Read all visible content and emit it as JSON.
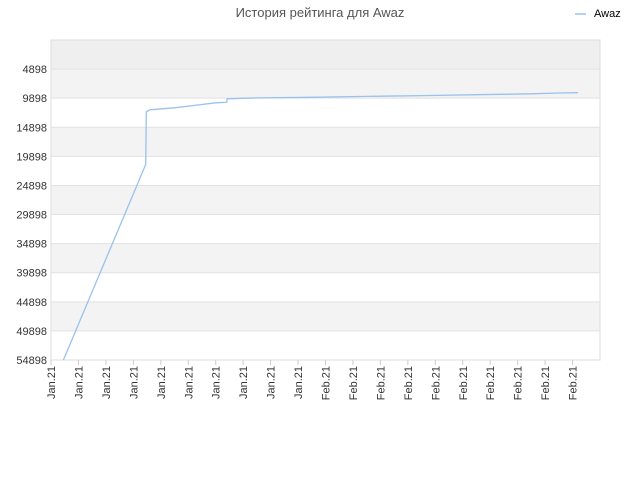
{
  "chart_data": {
    "type": "line",
    "title": "История рейтинга для Awaz",
    "xlabel": "",
    "ylabel": "",
    "y_inverted": true,
    "ylim": [
      54898,
      -102
    ],
    "yticks": [
      4898,
      9898,
      14898,
      19898,
      24898,
      29898,
      34898,
      39898,
      44898,
      49898,
      54898
    ],
    "x_tick_labels": [
      "Jan.21",
      "Jan.21",
      "Jan.21",
      "Jan.21",
      "Jan.21",
      "Jan.21",
      "Jan.21",
      "Jan.21",
      "Jan.21",
      "Jan.21",
      "Feb.21",
      "Feb.21",
      "Feb.21",
      "Feb.21",
      "Feb.21",
      "Feb.21",
      "Feb.21",
      "Feb.21",
      "Feb.21",
      "Feb.21"
    ],
    "grid": true,
    "legend": "top-right",
    "series_color": "#99c2ec",
    "series": [
      {
        "name": "Awaz",
        "points": [
          {
            "x": 0.45,
            "y": 54898
          },
          {
            "x": 3.45,
            "y": 21300
          },
          {
            "x": 3.47,
            "y": 12250
          },
          {
            "x": 3.6,
            "y": 11900
          },
          {
            "x": 4.5,
            "y": 11550
          },
          {
            "x": 5.2,
            "y": 11150
          },
          {
            "x": 6.0,
            "y": 10700
          },
          {
            "x": 6.4,
            "y": 10600
          },
          {
            "x": 6.42,
            "y": 10000
          },
          {
            "x": 7.5,
            "y": 9850
          },
          {
            "x": 9.5,
            "y": 9750
          },
          {
            "x": 11.5,
            "y": 9600
          },
          {
            "x": 13.5,
            "y": 9450
          },
          {
            "x": 15.5,
            "y": 9300
          },
          {
            "x": 17.5,
            "y": 9150
          },
          {
            "x": 18.5,
            "y": 9000
          },
          {
            "x": 19.2,
            "y": 8950
          }
        ]
      }
    ]
  }
}
